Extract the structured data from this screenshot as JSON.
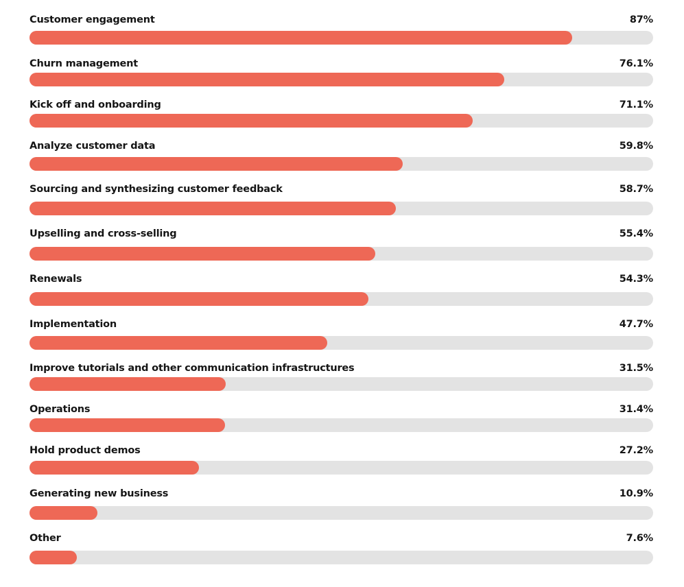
{
  "chart_data": {
    "type": "bar",
    "orientation": "horizontal",
    "xlim": [
      0,
      100
    ],
    "grid": false,
    "colors": {
      "fill": "#ee6856",
      "track": "#e3e3e3",
      "text": "#151515"
    },
    "categories": [
      "Customer engagement",
      "Churn management",
      "Kick off and onboarding",
      "Analyze customer data",
      "Sourcing and synthesizing customer feedback",
      "Upselling and cross-selling",
      "Renewals",
      "Implementation",
      "Improve tutorials and other communication infrastructures",
      "Operations",
      "Hold product demos",
      "Generating new business",
      "Other"
    ],
    "values": [
      87,
      76.1,
      71.1,
      59.8,
      58.7,
      55.4,
      54.3,
      47.7,
      31.5,
      31.4,
      27.2,
      10.9,
      7.6
    ],
    "value_labels": [
      "87%",
      "76.1%",
      "71.1%",
      "59.8%",
      "58.7%",
      "55.4%",
      "54.3%",
      "47.7%",
      "31.5%",
      "31.4%",
      "27.2%",
      "10.9%",
      "7.6%"
    ]
  }
}
